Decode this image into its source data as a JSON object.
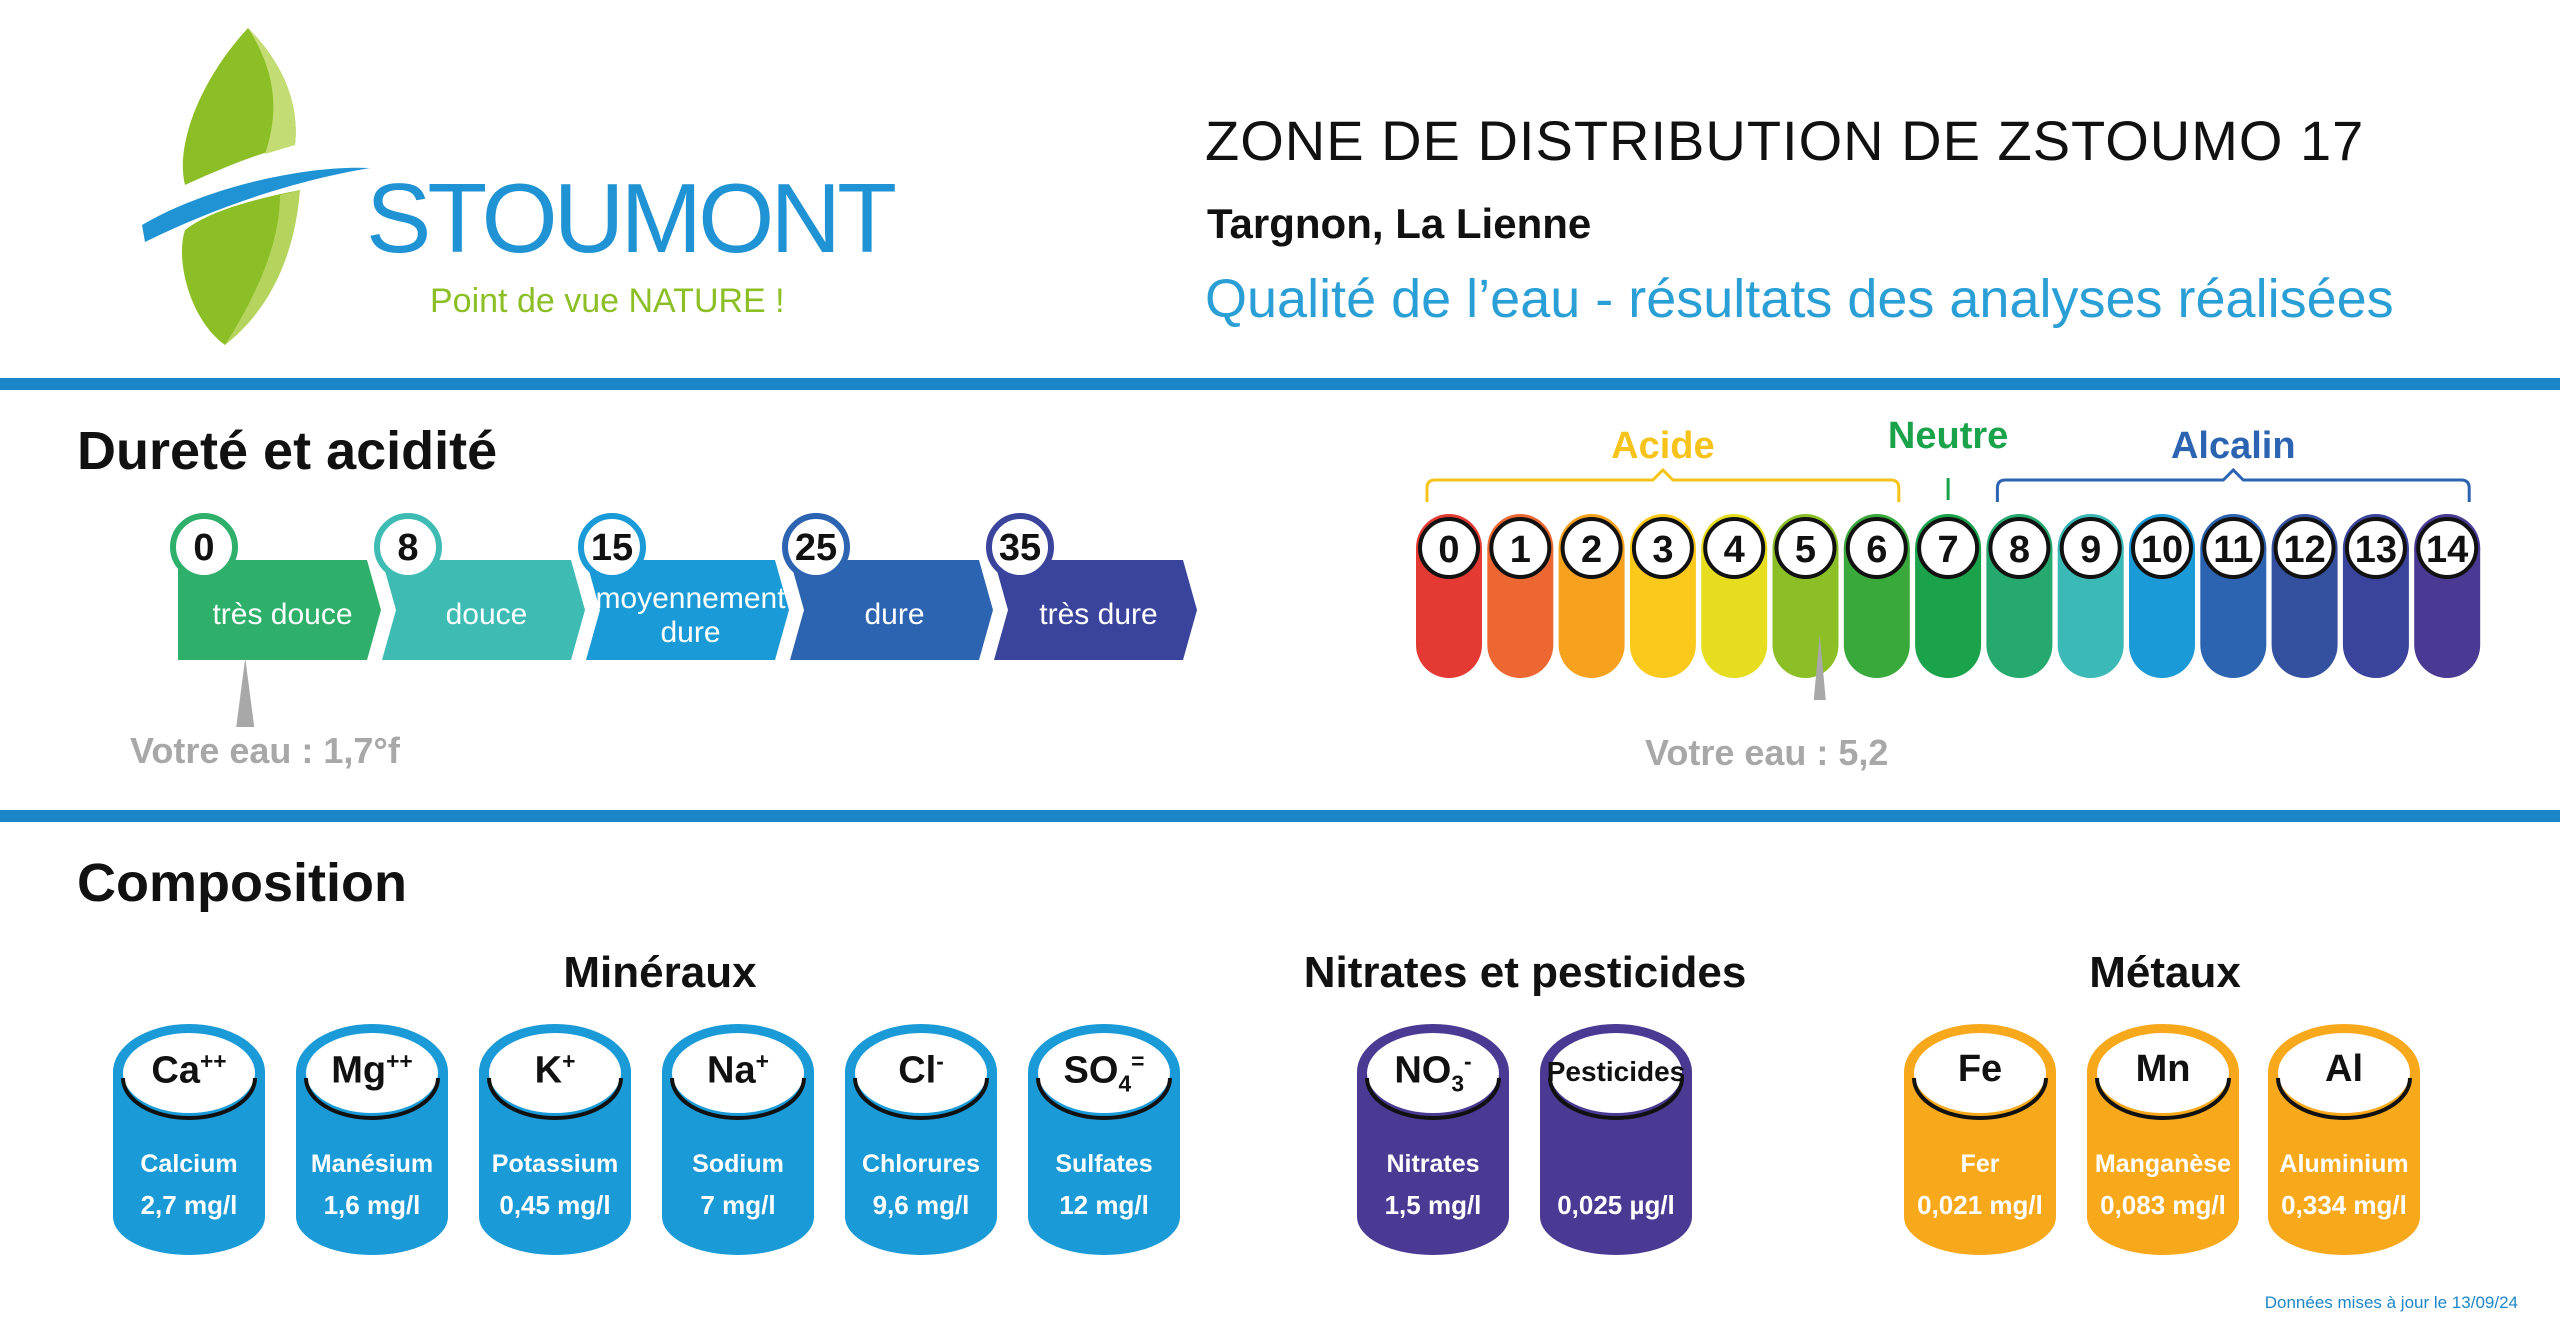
{
  "header": {
    "logo_name": "STOUMONT",
    "logo_tagline": "Point de vue NATURE !",
    "zone_title": "ZONE DE DISTRIBUTION DE ZSTOUMO 17",
    "subtitle": "Targnon, La Lienne",
    "tagline": "Qualité de l’eau - résultats des analyses réalisées"
  },
  "colors": {
    "accent": "#1c86c8",
    "logo_green": "#8cbf26",
    "logo_blue": "#1f93d3",
    "muted": "#a8a8a8"
  },
  "hardness": {
    "section_title": "Dureté et acidité",
    "value": 1.7,
    "scale_max": 45,
    "your_water": "Votre eau : 1,7°f",
    "bands": [
      {
        "num": "0",
        "label": "très douce",
        "color": "#2fb06a"
      },
      {
        "num": "8",
        "label": "douce",
        "color": "#3ebcb4"
      },
      {
        "num": "15",
        "label": "moyennement dure",
        "color": "#1a9ad6"
      },
      {
        "num": "25",
        "label": "dure",
        "color": "#2c64b1"
      },
      {
        "num": "35",
        "label": "très dure",
        "color": "#3b449c"
      }
    ]
  },
  "ph": {
    "value": 5.2,
    "your_water": "Votre eau : 5,2",
    "labels": {
      "acid": "Acide",
      "neutral": "Neutre",
      "alkaline": "Alcalin"
    },
    "label_colors": {
      "acid": "#f6c31b",
      "neutral": "#1aa34a",
      "alkaline": "#2c64b1"
    },
    "steps": [
      {
        "n": "0",
        "color": "#e53a33"
      },
      {
        "n": "1",
        "color": "#ec6731"
      },
      {
        "n": "2",
        "color": "#f6a21f"
      },
      {
        "n": "3",
        "color": "#fbc91b"
      },
      {
        "n": "4",
        "color": "#e6dd1f"
      },
      {
        "n": "5",
        "color": "#8cbf26"
      },
      {
        "n": "6",
        "color": "#3aa93b"
      },
      {
        "n": "7",
        "color": "#1aa34a"
      },
      {
        "n": "8",
        "color": "#25a96e"
      },
      {
        "n": "9",
        "color": "#3bb9b6"
      },
      {
        "n": "10",
        "color": "#1a9ad6"
      },
      {
        "n": "11",
        "color": "#2c64b1"
      },
      {
        "n": "12",
        "color": "#33519f"
      },
      {
        "n": "13",
        "color": "#3b449c"
      },
      {
        "n": "14",
        "color": "#4a3a93"
      }
    ]
  },
  "composition": {
    "section_title": "Composition",
    "groups": [
      {
        "title": "Minéraux",
        "color": "#1a9ad6",
        "items": [
          {
            "base": "Ca",
            "sup": "++",
            "sub": "",
            "name": "Calcium",
            "value": "2,7 mg/l"
          },
          {
            "base": "Mg",
            "sup": "++",
            "sub": "",
            "name": "Manésium",
            "value": "1,6 mg/l"
          },
          {
            "base": "K",
            "sup": "+",
            "sub": "",
            "name": "Potassium",
            "value": "0,45 mg/l"
          },
          {
            "base": "Na",
            "sup": "+",
            "sub": "",
            "name": "Sodium",
            "value": "7 mg/l"
          },
          {
            "base": "Cl",
            "sup": "-",
            "sub": "",
            "name": "Chlorures",
            "value": "9,6 mg/l"
          },
          {
            "base": "SO",
            "sup": "=",
            "sub": "4",
            "name": "Sulfates",
            "value": "12 mg/l"
          }
        ]
      },
      {
        "title": "Nitrates et pesticides",
        "color": "#4a3a93",
        "items": [
          {
            "base": "NO",
            "sup": "-",
            "sub": "3",
            "name": "Nitrates",
            "value": "1,5 mg/l"
          },
          {
            "base": "Pesticides",
            "sup": "",
            "sub": "",
            "name": "",
            "value": "0,025 µg/l",
            "small": true
          }
        ]
      },
      {
        "title": "Métaux",
        "color": "#f7a81b",
        "items": [
          {
            "base": "Fe",
            "sup": "",
            "sub": "",
            "name": "Fer",
            "value": "0,021 mg/l"
          },
          {
            "base": "Mn",
            "sup": "",
            "sub": "",
            "name": "Manganèse",
            "value": "0,083 mg/l"
          },
          {
            "base": "Al",
            "sup": "",
            "sub": "",
            "name": "Aluminium",
            "value": "0,334 mg/l"
          }
        ]
      }
    ]
  },
  "footer": {
    "updated": "Données mises à jour le 13/09/24"
  }
}
